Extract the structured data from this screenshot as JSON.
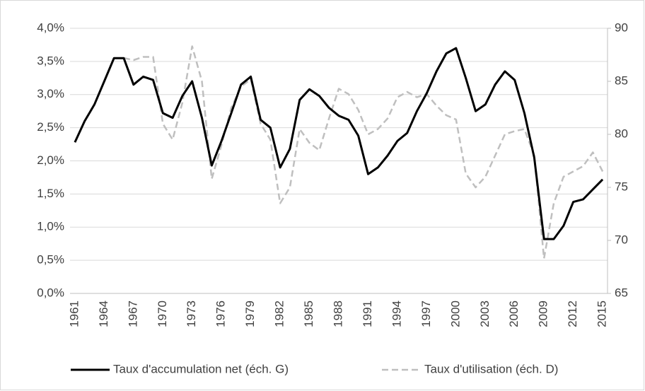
{
  "chart_data": {
    "type": "line",
    "categories": [
      "1961",
      null,
      null,
      "1964",
      null,
      null,
      "1967",
      null,
      null,
      "1970",
      null,
      null,
      "1973",
      null,
      null,
      "1976",
      null,
      null,
      "1979",
      null,
      null,
      "1982",
      null,
      null,
      "1985",
      null,
      null,
      "1988",
      null,
      null,
      "1991",
      null,
      null,
      "1994",
      null,
      null,
      "1997",
      null,
      null,
      "2000",
      null,
      null,
      "2003",
      null,
      null,
      "2006",
      null,
      null,
      "2009",
      null,
      null,
      "2012",
      null,
      null,
      "2015"
    ],
    "series": [
      {
        "name": "Taux d'accumulation net (éch. G)",
        "color": "#000000",
        "dash": false,
        "values": [
          2.28,
          2.6,
          2.85,
          3.2,
          3.55,
          3.55,
          3.15,
          3.27,
          3.22,
          2.72,
          2.65,
          2.98,
          3.2,
          2.65,
          1.93,
          2.3,
          2.72,
          3.15,
          3.27,
          2.62,
          2.5,
          1.9,
          2.18,
          2.92,
          3.08,
          2.98,
          2.8,
          2.68,
          2.62,
          2.38,
          1.8,
          1.9,
          2.08,
          2.3,
          2.42,
          2.75,
          3.02,
          3.35,
          3.62,
          3.7,
          3.25,
          2.75,
          2.85,
          3.15,
          3.35,
          3.22,
          2.72,
          2.05,
          0.82,
          0.82,
          1.02,
          1.38,
          1.42,
          1.57,
          1.72
        ]
      },
      {
        "name": "Taux d'utilisation (éch. D)",
        "color": "#bfbfbf",
        "dash": true,
        "axis": "y2",
        "values": [
          null,
          null,
          null,
          null,
          null,
          87.2,
          87,
          87.3,
          87.3,
          81,
          79.5,
          83,
          88.3,
          85,
          75.8,
          79,
          82.5,
          84.5,
          85.2,
          81,
          79.5,
          73.5,
          75,
          80.5,
          79.2,
          78.5,
          81.5,
          84.3,
          83.8,
          82.3,
          80,
          80.5,
          81.5,
          83.5,
          84,
          83.5,
          83.8,
          82.7,
          81.8,
          81.4,
          76.3,
          75,
          76,
          78,
          80,
          80.3,
          80.5,
          78,
          68.3,
          73.5,
          76,
          76.5,
          77,
          78.3,
          76.5
        ]
      }
    ],
    "ylim": [
      0,
      4
    ],
    "yticks": [
      {
        "value": 0,
        "label": "0,0%"
      },
      {
        "value": 0.5,
        "label": "0,5%"
      },
      {
        "value": 1,
        "label": "1,0%"
      },
      {
        "value": 1.5,
        "label": "1,5%"
      },
      {
        "value": 2,
        "label": "2,0%"
      },
      {
        "value": 2.5,
        "label": "2,5%"
      },
      {
        "value": 3,
        "label": "3,0%"
      },
      {
        "value": 3.5,
        "label": "3,5%"
      },
      {
        "value": 4,
        "label": "4,0%"
      }
    ],
    "y2lim": [
      65,
      90
    ],
    "y2ticks": [
      65,
      70,
      75,
      80,
      85,
      90
    ],
    "grid": true,
    "legend": "bottom"
  }
}
